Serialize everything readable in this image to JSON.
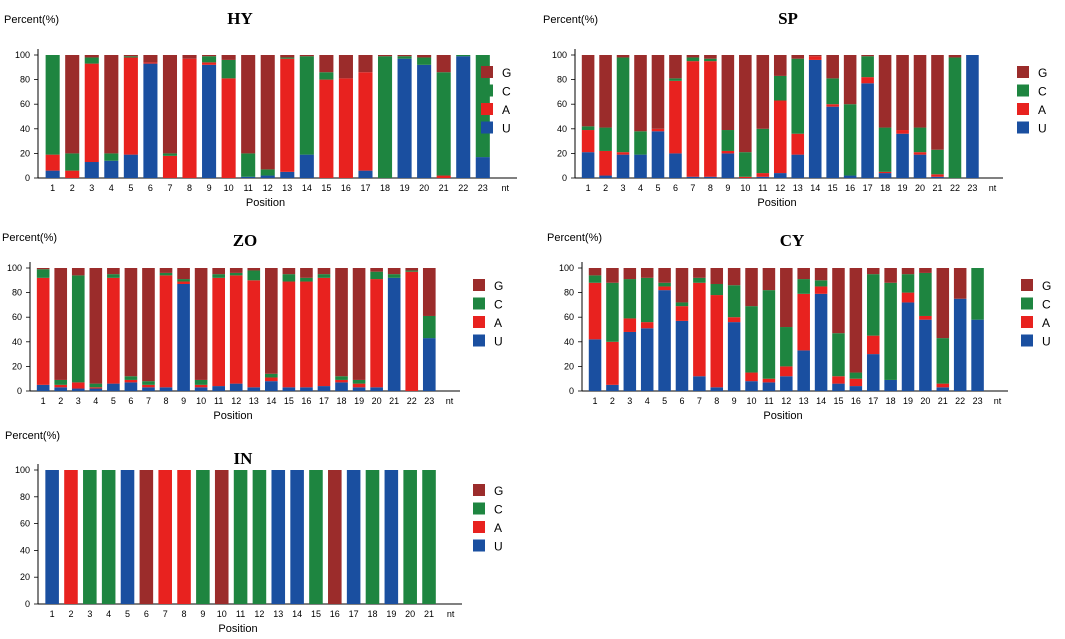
{
  "figure": {
    "ylabel": "Percent(%)",
    "xlabel": "Position",
    "extra_tick": "nt",
    "colors": {
      "G": "#9b2c2b",
      "C": "#1e8540",
      "A": "#e8221f",
      "U": "#1a4fa0"
    },
    "legend": [
      "G",
      "C",
      "A",
      "U"
    ]
  },
  "chart_data": [
    {
      "type": "bar",
      "stacked": true,
      "title": "HY",
      "ylabel": "Percent(%)",
      "xlabel": "Position",
      "ylim": [
        0,
        100
      ],
      "yticks": [
        "0",
        "20",
        "40",
        "60",
        "80",
        "100"
      ],
      "categories": [
        "1",
        "2",
        "3",
        "4",
        "5",
        "6",
        "7",
        "8",
        "9",
        "10",
        "11",
        "12",
        "13",
        "14",
        "15",
        "16",
        "17",
        "18",
        "19",
        "20",
        "21",
        "22",
        "23"
      ],
      "series": [
        {
          "name": "U",
          "values": [
            6,
            0,
            13,
            14,
            19,
            93,
            0,
            0,
            92,
            0,
            1,
            2,
            5,
            19,
            0,
            0,
            6,
            0,
            97,
            92,
            0,
            99,
            17
          ]
        },
        {
          "name": "A",
          "values": [
            13,
            6,
            80,
            0,
            79,
            1,
            18,
            97,
            2,
            81,
            0,
            0,
            92,
            0,
            80,
            81,
            80,
            0,
            0,
            0,
            2,
            0,
            0
          ]
        },
        {
          "name": "C",
          "values": [
            81,
            14,
            5,
            6,
            1,
            0,
            2,
            0,
            5,
            15,
            19,
            5,
            1,
            80,
            6,
            0,
            0,
            99,
            2,
            6,
            84,
            1,
            83
          ]
        },
        {
          "name": "G",
          "values": [
            0,
            80,
            2,
            80,
            1,
            6,
            80,
            3,
            1,
            4,
            80,
            93,
            2,
            1,
            14,
            19,
            14,
            1,
            1,
            2,
            14,
            0,
            0
          ]
        }
      ]
    },
    {
      "type": "bar",
      "stacked": true,
      "title": "SP",
      "ylabel": "Percent(%)",
      "xlabel": "Position",
      "ylim": [
        0,
        100
      ],
      "yticks": [
        "0",
        "20",
        "40",
        "60",
        "80",
        "100"
      ],
      "categories": [
        "1",
        "2",
        "3",
        "4",
        "5",
        "6",
        "7",
        "8",
        "9",
        "10",
        "11",
        "12",
        "13",
        "14",
        "15",
        "16",
        "17",
        "18",
        "19",
        "20",
        "21",
        "22",
        "23"
      ],
      "series": [
        {
          "name": "U",
          "values": [
            21,
            2,
            19,
            19,
            38,
            20,
            1,
            1,
            20,
            0,
            1,
            4,
            19,
            96,
            58,
            2,
            77,
            4,
            36,
            19,
            1,
            0,
            100
          ]
        },
        {
          "name": "A",
          "values": [
            18,
            20,
            2,
            0,
            2,
            59,
            94,
            94,
            2,
            1,
            3,
            59,
            17,
            3,
            2,
            0,
            5,
            1,
            3,
            2,
            2,
            0,
            0
          ]
        },
        {
          "name": "C",
          "values": [
            3,
            19,
            77,
            19,
            0,
            2,
            3,
            2,
            17,
            20,
            36,
            20,
            61,
            0,
            21,
            58,
            17,
            36,
            0,
            20,
            20,
            98,
            0
          ]
        },
        {
          "name": "G",
          "values": [
            58,
            59,
            2,
            62,
            60,
            19,
            2,
            3,
            61,
            79,
            60,
            17,
            3,
            1,
            19,
            40,
            1,
            59,
            61,
            59,
            77,
            2,
            0
          ]
        }
      ]
    },
    {
      "type": "bar",
      "stacked": true,
      "title": "ZO",
      "ylabel": "Percent(%)",
      "xlabel": "Position",
      "ylim": [
        0,
        100
      ],
      "yticks": [
        "0",
        "20",
        "40",
        "60",
        "80",
        "100"
      ],
      "categories": [
        "1",
        "2",
        "3",
        "4",
        "5",
        "6",
        "7",
        "8",
        "9",
        "10",
        "11",
        "12",
        "13",
        "14",
        "15",
        "16",
        "17",
        "18",
        "19",
        "20",
        "21",
        "22",
        "23"
      ],
      "series": [
        {
          "name": "U",
          "values": [
            5,
            3,
            2,
            2,
            6,
            7,
            3,
            3,
            87,
            3,
            4,
            6,
            3,
            8,
            3,
            3,
            4,
            7,
            3,
            3,
            92,
            0,
            43
          ]
        },
        {
          "name": "A",
          "values": [
            87,
            2,
            5,
            1,
            86,
            2,
            2,
            91,
            2,
            2,
            88,
            88,
            87,
            3,
            86,
            86,
            88,
            2,
            3,
            88,
            0,
            97,
            0
          ]
        },
        {
          "name": "C",
          "values": [
            7,
            4,
            87,
            3,
            3,
            3,
            3,
            2,
            2,
            4,
            3,
            2,
            8,
            3,
            6,
            3,
            3,
            3,
            3,
            6,
            3,
            1,
            18
          ]
        },
        {
          "name": "G",
          "values": [
            1,
            91,
            6,
            94,
            5,
            88,
            92,
            4,
            9,
            91,
            5,
            4,
            2,
            86,
            5,
            8,
            5,
            88,
            91,
            3,
            5,
            2,
            39
          ]
        }
      ]
    },
    {
      "type": "bar",
      "stacked": true,
      "title": "CY",
      "ylabel": "Percent(%)",
      "xlabel": "Position",
      "ylim": [
        0,
        100
      ],
      "yticks": [
        "0",
        "20",
        "40",
        "60",
        "80",
        "100"
      ],
      "categories": [
        "1",
        "2",
        "3",
        "4",
        "5",
        "6",
        "7",
        "8",
        "9",
        "10",
        "11",
        "12",
        "13",
        "14",
        "15",
        "16",
        "17",
        "18",
        "19",
        "20",
        "21",
        "22",
        "23"
      ],
      "series": [
        {
          "name": "U",
          "values": [
            42,
            5,
            48,
            51,
            82,
            57,
            12,
            3,
            56,
            8,
            7,
            12,
            33,
            79,
            6,
            4,
            30,
            9,
            72,
            58,
            3,
            75,
            58
          ]
        },
        {
          "name": "A",
          "values": [
            46,
            35,
            11,
            5,
            3,
            12,
            76,
            75,
            4,
            7,
            3,
            8,
            46,
            6,
            6,
            6,
            15,
            0,
            8,
            3,
            3,
            0,
            0
          ]
        },
        {
          "name": "C",
          "values": [
            6,
            48,
            32,
            36,
            3,
            3,
            4,
            9,
            26,
            54,
            72,
            32,
            12,
            5,
            35,
            5,
            50,
            79,
            15,
            35,
            37,
            0,
            42
          ]
        },
        {
          "name": "G",
          "values": [
            6,
            12,
            9,
            8,
            12,
            28,
            8,
            13,
            14,
            31,
            18,
            48,
            9,
            10,
            53,
            85,
            5,
            12,
            5,
            4,
            57,
            25,
            0
          ]
        }
      ]
    },
    {
      "type": "bar",
      "stacked": true,
      "title": "IN",
      "ylabel": "Percent(%)",
      "xlabel": "Position",
      "ylim": [
        0,
        100
      ],
      "yticks": [
        "0",
        "20",
        "40",
        "60",
        "80",
        "100"
      ],
      "categories": [
        "1",
        "2",
        "3",
        "4",
        "5",
        "6",
        "7",
        "8",
        "9",
        "10",
        "11",
        "12",
        "13",
        "14",
        "15",
        "16",
        "17",
        "18",
        "19",
        "20",
        "21"
      ],
      "series": [
        {
          "name": "U",
          "values": [
            100,
            0,
            0,
            0,
            100,
            0,
            0,
            0,
            0,
            0,
            0,
            0,
            100,
            100,
            0,
            0,
            100,
            0,
            100,
            0,
            0
          ]
        },
        {
          "name": "A",
          "values": [
            0,
            100,
            0,
            0,
            0,
            0,
            100,
            100,
            0,
            0,
            0,
            0,
            0,
            0,
            0,
            0,
            0,
            0,
            0,
            0,
            0
          ]
        },
        {
          "name": "C",
          "values": [
            0,
            0,
            100,
            100,
            0,
            0,
            0,
            0,
            100,
            0,
            100,
            100,
            0,
            0,
            100,
            0,
            0,
            100,
            0,
            100,
            100
          ]
        },
        {
          "name": "G",
          "values": [
            0,
            0,
            0,
            0,
            0,
            100,
            0,
            0,
            0,
            100,
            0,
            0,
            0,
            0,
            0,
            100,
            0,
            0,
            0,
            0,
            0
          ]
        }
      ]
    }
  ]
}
